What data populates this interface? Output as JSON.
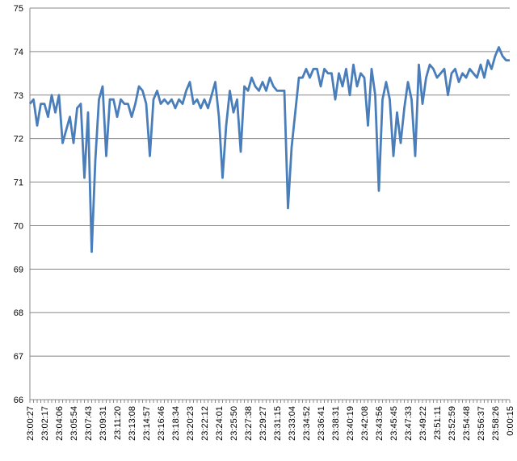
{
  "chart_data": {
    "type": "line",
    "categories": [
      "23:00:27",
      null,
      null,
      null,
      "23:02:17",
      null,
      null,
      null,
      "23:04:06",
      null,
      null,
      null,
      "23:05:54",
      null,
      null,
      null,
      "23:07:43",
      null,
      null,
      null,
      "23:09:31",
      null,
      null,
      null,
      "23:11:20",
      null,
      null,
      null,
      "23:13:08",
      null,
      null,
      null,
      "23:14:57",
      null,
      null,
      null,
      "23:16:46",
      null,
      null,
      null,
      "23:18:34",
      null,
      null,
      null,
      "23:20:23",
      null,
      null,
      null,
      "23:22:12",
      null,
      null,
      null,
      "23:24:01",
      null,
      null,
      null,
      "23:25:50",
      null,
      null,
      null,
      "23:27:38",
      null,
      null,
      null,
      "23:29:27",
      null,
      null,
      null,
      "23:31:15",
      null,
      null,
      null,
      "23:33:04",
      null,
      null,
      null,
      "23:34:52",
      null,
      null,
      null,
      "23:36:41",
      null,
      null,
      null,
      "23:38:31",
      null,
      null,
      null,
      "23:40:19",
      null,
      null,
      null,
      "23:42:08",
      null,
      null,
      null,
      "23:43:56",
      null,
      null,
      null,
      "23:45:45",
      null,
      null,
      null,
      "23:47:33",
      null,
      null,
      null,
      "23:49:22",
      null,
      null,
      null,
      "23:51:11",
      null,
      null,
      null,
      "23:52:59",
      null,
      null,
      null,
      "23:54:48",
      null,
      null,
      null,
      "23:56:37",
      null,
      null,
      null,
      "23:58:26",
      null,
      null,
      null,
      "0:00:15"
    ],
    "values": [
      72.8,
      72.9,
      72.3,
      72.8,
      72.8,
      72.5,
      73.0,
      72.6,
      73.0,
      71.9,
      72.2,
      72.5,
      71.9,
      72.7,
      72.8,
      71.1,
      72.6,
      69.4,
      71.5,
      72.9,
      73.2,
      71.6,
      72.9,
      72.9,
      72.5,
      72.9,
      72.8,
      72.8,
      72.5,
      72.8,
      73.2,
      73.1,
      72.8,
      71.6,
      72.9,
      73.1,
      72.8,
      72.9,
      72.8,
      72.9,
      72.7,
      72.9,
      72.8,
      73.1,
      73.3,
      72.8,
      72.9,
      72.7,
      72.9,
      72.7,
      73.0,
      73.3,
      72.5,
      71.1,
      72.3,
      73.1,
      72.6,
      72.9,
      71.7,
      73.2,
      73.1,
      73.4,
      73.2,
      73.1,
      73.3,
      73.1,
      73.4,
      73.2,
      73.1,
      73.1,
      73.1,
      70.4,
      71.8,
      72.6,
      73.4,
      73.4,
      73.6,
      73.4,
      73.6,
      73.6,
      73.2,
      73.6,
      73.5,
      73.5,
      72.9,
      73.5,
      73.2,
      73.6,
      73.0,
      73.7,
      73.2,
      73.5,
      73.4,
      72.3,
      73.6,
      73.0,
      70.8,
      72.9,
      73.3,
      72.9,
      71.6,
      72.6,
      71.9,
      72.7,
      73.3,
      72.9,
      71.6,
      73.7,
      72.8,
      73.4,
      73.7,
      73.6,
      73.4,
      73.5,
      73.6,
      73.0,
      73.5,
      73.6,
      73.3,
      73.5,
      73.4,
      73.6,
      73.5,
      73.4,
      73.7,
      73.4,
      73.8,
      73.6,
      73.9,
      74.1,
      73.9,
      73.8,
      73.8
    ],
    "color": "#4a7ebb",
    "ylim": [
      66,
      75
    ],
    "yticks": [
      66,
      67,
      68,
      69,
      70,
      71,
      72,
      73,
      74,
      75
    ],
    "grid": true
  }
}
